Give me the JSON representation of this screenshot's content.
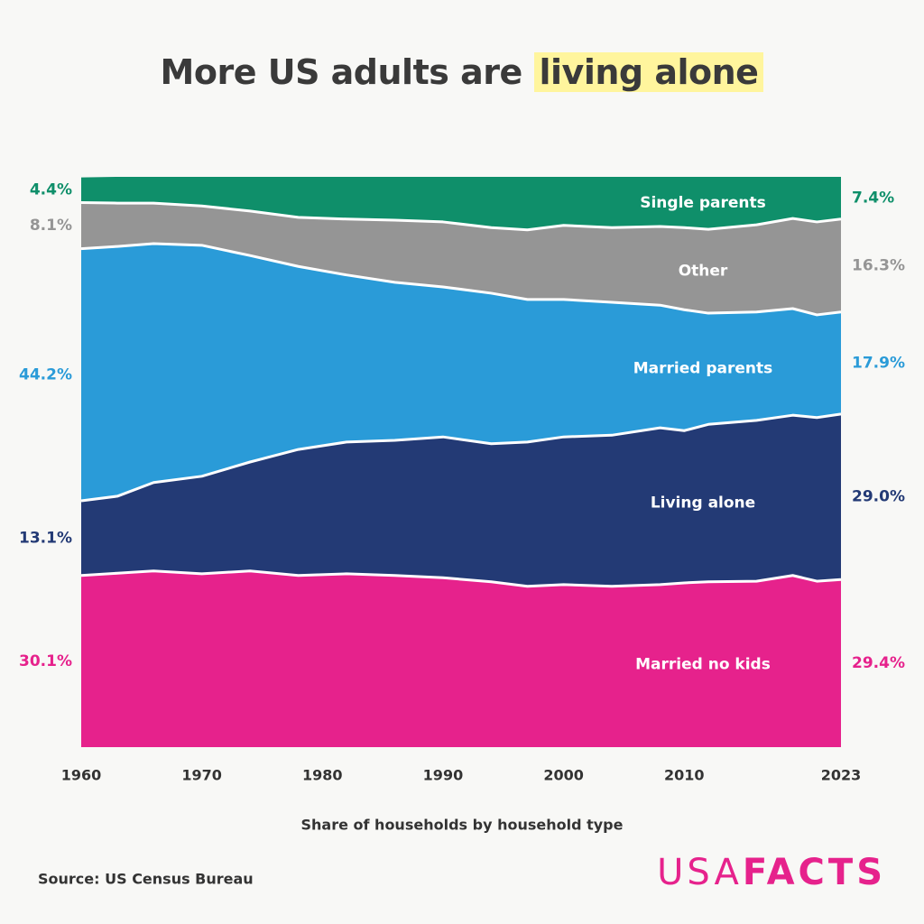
{
  "title": "More US adults are",
  "title_highlight": "living alone",
  "source": "Source: US Census Bureau",
  "logo_light": "USA",
  "logo_bold": "FACTS",
  "chart_data": {
    "type": "stacked-area",
    "x_label": "Share of households by household type",
    "x": [
      1960,
      1963,
      1966,
      1970,
      1974,
      1978,
      1982,
      1986,
      1990,
      1994,
      1997,
      2000,
      2004,
      2008,
      2010,
      2012,
      2016,
      2019,
      2021,
      2023
    ],
    "xlim": [
      1960,
      2023
    ],
    "xticks": [
      1960,
      1970,
      1980,
      1990,
      2000,
      2010,
      2023
    ],
    "ylim": [
      0,
      100
    ],
    "series": [
      {
        "name": "Married no kids",
        "color": "#e6228c",
        "values": [
          30.1,
          30.5,
          30.9,
          30.4,
          30.9,
          30.1,
          30.4,
          30.1,
          29.7,
          29.0,
          28.2,
          28.5,
          28.2,
          28.5,
          28.8,
          29.0,
          29.1,
          30.1,
          29.1,
          29.4
        ],
        "value_labels": [
          "30.1%",
          null,
          null,
          null,
          null,
          null,
          null,
          null,
          null,
          null,
          null,
          null,
          null,
          null,
          null,
          null,
          null,
          null,
          null,
          "29.4%"
        ]
      },
      {
        "name": "Living alone",
        "color": "#233a75",
        "values": [
          13.1,
          13.5,
          15.5,
          17.1,
          19.1,
          22.1,
          23.1,
          23.7,
          24.7,
          24.2,
          25.3,
          25.9,
          26.5,
          27.5,
          26.7,
          27.6,
          28.2,
          28.1,
          28.7,
          29.0
        ],
        "value_labels": [
          "13.1%",
          null,
          null,
          null,
          null,
          null,
          null,
          null,
          null,
          null,
          null,
          null,
          null,
          null,
          null,
          null,
          null,
          null,
          null,
          "29.0%"
        ]
      },
      {
        "name": "Married parents",
        "color": "#2a9bd8",
        "values": [
          44.2,
          43.8,
          41.9,
          40.5,
          36.2,
          32.1,
          29.3,
          27.7,
          26.3,
          26.4,
          25.0,
          24.1,
          23.3,
          21.5,
          21.2,
          19.5,
          19.0,
          18.7,
          18.0,
          17.9
        ],
        "value_labels": [
          "44.2%",
          null,
          null,
          null,
          null,
          null,
          null,
          null,
          null,
          null,
          null,
          null,
          null,
          null,
          null,
          null,
          null,
          null,
          null,
          "17.9%"
        ]
      },
      {
        "name": "Other",
        "color": "#959595",
        "values": [
          8.1,
          7.6,
          7.1,
          6.9,
          7.8,
          8.6,
          9.8,
          10.9,
          11.4,
          11.5,
          12.2,
          13.0,
          13.1,
          13.8,
          14.4,
          14.7,
          15.3,
          15.8,
          16.3,
          16.3
        ],
        "value_labels": [
          "8.1%",
          null,
          null,
          null,
          null,
          null,
          null,
          null,
          null,
          null,
          null,
          null,
          null,
          null,
          null,
          null,
          null,
          null,
          null,
          "16.3%"
        ]
      },
      {
        "name": "Single parents",
        "color": "#0f8f6a",
        "values": [
          4.4,
          4.6,
          4.6,
          5.1,
          6.0,
          7.1,
          7.4,
          7.6,
          7.9,
          8.9,
          9.3,
          8.5,
          8.9,
          8.7,
          8.9,
          9.2,
          8.4,
          7.3,
          7.9,
          7.4
        ],
        "value_labels": [
          "4.4%",
          null,
          null,
          null,
          null,
          null,
          null,
          null,
          null,
          null,
          null,
          null,
          null,
          null,
          null,
          null,
          null,
          null,
          null,
          "7.4%"
        ]
      }
    ]
  }
}
